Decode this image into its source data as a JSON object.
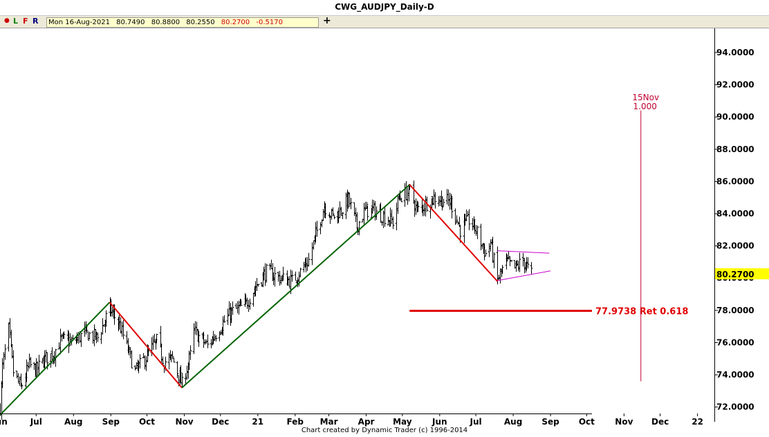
{
  "window": {
    "title": "CWG_AUDJPY_Daily-D"
  },
  "toolbar": {
    "buttons": [
      {
        "id": "dot",
        "label": "●",
        "color": "#cc0000"
      },
      {
        "id": "L",
        "label": "L",
        "color": "#008000"
      },
      {
        "id": "F",
        "label": "F",
        "color": "#cc0000"
      },
      {
        "id": "R",
        "label": "R",
        "color": "#000080"
      }
    ],
    "ohlc": {
      "date": "Mon 16-Aug-2021",
      "open": "80.7490",
      "high": "80.8800",
      "low": "80.2550",
      "close": "80.2700",
      "change": "-0.5170"
    },
    "add_label": "+"
  },
  "footer": {
    "text": "Chart created by Dynamic Trader  (c)  1996-2014"
  },
  "chart_data": {
    "type": "bar",
    "subtype": "ohlc",
    "title": "CWG_AUDJPY_Daily-D",
    "y_axis_side": "right",
    "ylim": [
      71.6,
      95.5
    ],
    "y_ticks": [
      "94.0000",
      "92.0000",
      "90.0000",
      "88.0000",
      "86.0000",
      "84.0000",
      "82.0000",
      "80.0000",
      "78.0000",
      "76.0000",
      "74.0000",
      "72.0000"
    ],
    "x_labels": [
      "Jun",
      "Jul",
      "Aug",
      "Sep",
      "Oct",
      "Nov",
      "Dec",
      "21",
      "Feb",
      "Mar",
      "Apr",
      "May",
      "Jun",
      "Jul",
      "Aug",
      "Sep",
      "Oct",
      "Nov",
      "Dec",
      "22"
    ],
    "x_range": [
      "2020-06-01",
      "2022-01-15"
    ],
    "last_price": {
      "value": 80.27,
      "label": "80.2700",
      "highlight": "#ffff00"
    },
    "price_anchors": [
      [
        "2020-06-01",
        72.0
      ],
      [
        "2020-06-03",
        74.5
      ],
      [
        "2020-06-08",
        76.8
      ],
      [
        "2020-06-12",
        74.2
      ],
      [
        "2020-06-18",
        73.2
      ],
      [
        "2020-06-25",
        74.6
      ],
      [
        "2020-07-01",
        74.3
      ],
      [
        "2020-07-08",
        75.0
      ],
      [
        "2020-07-15",
        75.3
      ],
      [
        "2020-07-22",
        76.2
      ],
      [
        "2020-07-31",
        76.0
      ],
      [
        "2020-08-10",
        76.6
      ],
      [
        "2020-08-21",
        76.3
      ],
      [
        "2020-08-31",
        78.1
      ],
      [
        "2020-09-08",
        77.1
      ],
      [
        "2020-09-21",
        74.2
      ],
      [
        "2020-10-01",
        75.2
      ],
      [
        "2020-10-09",
        76.1
      ],
      [
        "2020-10-15",
        74.8
      ],
      [
        "2020-10-22",
        75.0
      ],
      [
        "2020-10-30",
        73.4
      ],
      [
        "2020-11-06",
        75.2
      ],
      [
        "2020-11-09",
        76.7
      ],
      [
        "2020-11-20",
        75.8
      ],
      [
        "2020-12-01",
        77.0
      ],
      [
        "2020-12-10",
        77.9
      ],
      [
        "2020-12-21",
        78.3
      ],
      [
        "2020-12-31",
        79.6
      ],
      [
        "2021-01-08",
        80.4
      ],
      [
        "2021-01-20",
        80.0
      ],
      [
        "2021-01-29",
        79.8
      ],
      [
        "2021-02-05",
        80.4
      ],
      [
        "2021-02-12",
        81.1
      ],
      [
        "2021-02-25",
        84.5
      ],
      [
        "2021-03-04",
        83.8
      ],
      [
        "2021-03-12",
        84.3
      ],
      [
        "2021-03-17",
        84.9
      ],
      [
        "2021-03-24",
        83.2
      ],
      [
        "2021-03-31",
        84.2
      ],
      [
        "2021-04-08",
        84.2
      ],
      [
        "2021-04-16",
        83.8
      ],
      [
        "2021-04-23",
        83.5
      ],
      [
        "2021-04-28",
        85.0
      ],
      [
        "2021-05-07",
        85.4
      ],
      [
        "2021-05-13",
        84.2
      ],
      [
        "2021-05-20",
        84.6
      ],
      [
        "2021-05-28",
        85.0
      ],
      [
        "2021-06-10",
        84.7
      ],
      [
        "2021-06-18",
        83.0
      ],
      [
        "2021-06-25",
        83.6
      ],
      [
        "2021-07-01",
        83.0
      ],
      [
        "2021-07-09",
        81.5
      ],
      [
        "2021-07-13",
        82.2
      ],
      [
        "2021-07-19",
        79.9
      ],
      [
        "2021-07-26",
        81.0
      ],
      [
        "2021-08-02",
        80.6
      ],
      [
        "2021-08-09",
        81.1
      ],
      [
        "2021-08-13",
        80.6
      ],
      [
        "2021-08-16",
        80.27
      ]
    ],
    "trend_lines": [
      {
        "color": "#006400",
        "from": [
          "2020-06-01",
          71.5
        ],
        "to": [
          "2020-08-31",
          78.5
        ]
      },
      {
        "color": "#e00000",
        "from": [
          "2020-08-31",
          78.5
        ],
        "to": [
          "2020-10-30",
          73.2
        ]
      },
      {
        "color": "#006400",
        "from": [
          "2020-10-30",
          73.2
        ],
        "to": [
          "2021-05-07",
          85.8
        ]
      },
      {
        "color": "#e00000",
        "from": [
          "2021-05-07",
          85.8
        ],
        "to": [
          "2021-07-19",
          79.8
        ]
      }
    ],
    "triangle": {
      "color": "#cc00cc",
      "upper": {
        "from": [
          "2021-07-19",
          81.7
        ],
        "to": [
          "2021-08-31",
          81.55
        ]
      },
      "lower": {
        "from": [
          "2021-07-19",
          79.85
        ],
        "to": [
          "2021-09-01",
          80.45
        ]
      }
    },
    "retracement": {
      "value": 77.9738,
      "label": "77.9738 Ret 0.618",
      "color": "#e00000",
      "from_date": "2021-05-07",
      "to_date": "2022-01-15"
    },
    "time_marker": {
      "date": "2021-11-15",
      "label_line1": "15Nov",
      "label_line2": "1.000",
      "color": "#c00030",
      "y_top": 90.4,
      "y_bottom": 73.6
    }
  }
}
